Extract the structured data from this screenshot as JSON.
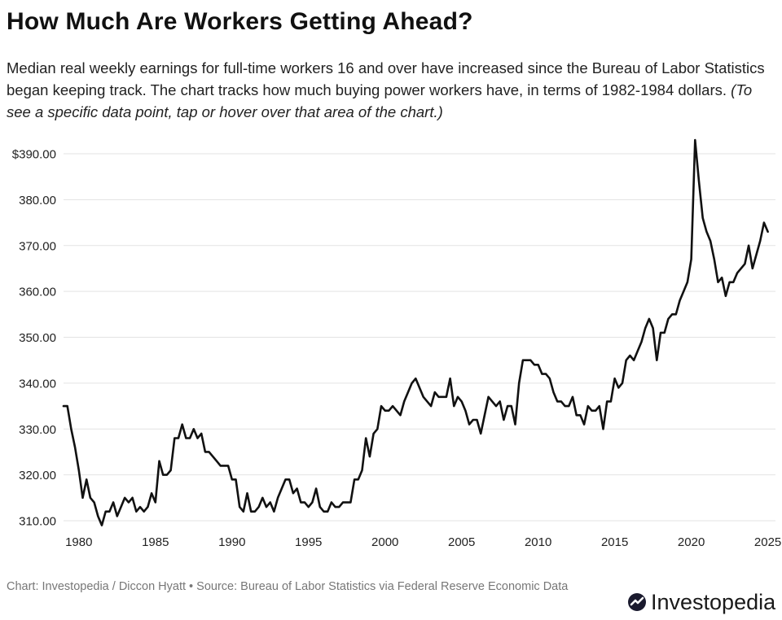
{
  "header": {
    "title": "How Much Are Workers Getting Ahead?",
    "subtitle": "Median real weekly earnings for full-time workers 16 and over have increased since the Bureau of Labor Statistics began keeping track. The chart tracks how much buying power workers have, in terms of 1982-1984 dollars.",
    "subtitle_note": "(To see a specific data point, tap or hover over that area of the chart.)"
  },
  "footer": {
    "credit": "Chart: Investopedia / Diccon Hyatt • Source: Bureau of Labor Statistics via Federal Reserve Economic Data",
    "brand": "Investopedia"
  },
  "colors": {
    "line": "#111111",
    "grid": "#e3e3e3",
    "brand_dark": "#1a1a2e"
  },
  "chart_data": {
    "type": "line",
    "title": "How Much Are Workers Getting Ahead?",
    "xlabel": "",
    "ylabel": "",
    "grid": true,
    "ylim": [
      310,
      390
    ],
    "xlim": [
      1979,
      2025.5
    ],
    "x_ticks": [
      1980,
      1985,
      1990,
      1995,
      2000,
      2005,
      2010,
      2015,
      2020,
      2025
    ],
    "x_tick_labels": [
      "1980",
      "1985",
      "1990",
      "1995",
      "2000",
      "2005",
      "2010",
      "2015",
      "2020",
      "2025"
    ],
    "y_ticks": [
      310,
      320,
      330,
      340,
      350,
      360,
      370,
      380,
      390
    ],
    "y_tick_labels": [
      "310.00",
      "320.00",
      "330.00",
      "340.00",
      "350.00",
      "360.00",
      "370.00",
      "380.00",
      "$390.00"
    ],
    "series": [
      {
        "name": "Median real weekly earnings (1982-84 dollars)",
        "x": [
          1979.0,
          1979.25,
          1979.5,
          1979.75,
          1980.0,
          1980.25,
          1980.5,
          1980.75,
          1981.0,
          1981.25,
          1981.5,
          1981.75,
          1982.0,
          1982.25,
          1982.5,
          1982.75,
          1983.0,
          1983.25,
          1983.5,
          1983.75,
          1984.0,
          1984.25,
          1984.5,
          1984.75,
          1985.0,
          1985.25,
          1985.5,
          1985.75,
          1986.0,
          1986.25,
          1986.5,
          1986.75,
          1987.0,
          1987.25,
          1987.5,
          1987.75,
          1988.0,
          1988.25,
          1988.5,
          1988.75,
          1989.0,
          1989.25,
          1989.5,
          1989.75,
          1990.0,
          1990.25,
          1990.5,
          1990.75,
          1991.0,
          1991.25,
          1991.5,
          1991.75,
          1992.0,
          1992.25,
          1992.5,
          1992.75,
          1993.0,
          1993.25,
          1993.5,
          1993.75,
          1994.0,
          1994.25,
          1994.5,
          1994.75,
          1995.0,
          1995.25,
          1995.5,
          1995.75,
          1996.0,
          1996.25,
          1996.5,
          1996.75,
          1997.0,
          1997.25,
          1997.5,
          1997.75,
          1998.0,
          1998.25,
          1998.5,
          1998.75,
          1999.0,
          1999.25,
          1999.5,
          1999.75,
          2000.0,
          2000.25,
          2000.5,
          2000.75,
          2001.0,
          2001.25,
          2001.5,
          2001.75,
          2002.0,
          2002.25,
          2002.5,
          2002.75,
          2003.0,
          2003.25,
          2003.5,
          2003.75,
          2004.0,
          2004.25,
          2004.5,
          2004.75,
          2005.0,
          2005.25,
          2005.5,
          2005.75,
          2006.0,
          2006.25,
          2006.5,
          2006.75,
          2007.0,
          2007.25,
          2007.5,
          2007.75,
          2008.0,
          2008.25,
          2008.5,
          2008.75,
          2009.0,
          2009.25,
          2009.5,
          2009.75,
          2010.0,
          2010.25,
          2010.5,
          2010.75,
          2011.0,
          2011.25,
          2011.5,
          2011.75,
          2012.0,
          2012.25,
          2012.5,
          2012.75,
          2013.0,
          2013.25,
          2013.5,
          2013.75,
          2014.0,
          2014.25,
          2014.5,
          2014.75,
          2015.0,
          2015.25,
          2015.5,
          2015.75,
          2016.0,
          2016.25,
          2016.5,
          2016.75,
          2017.0,
          2017.25,
          2017.5,
          2017.75,
          2018.0,
          2018.25,
          2018.5,
          2018.75,
          2019.0,
          2019.25,
          2019.5,
          2019.75,
          2020.0,
          2020.25,
          2020.5,
          2020.75,
          2021.0,
          2021.25,
          2021.5,
          2021.75,
          2022.0,
          2022.25,
          2022.5,
          2022.75,
          2023.0,
          2023.25,
          2023.5,
          2023.75,
          2024.0,
          2024.25,
          2024.5,
          2024.75,
          2025.0
        ],
        "values": [
          335,
          335,
          330,
          326,
          321,
          315,
          319,
          315,
          314,
          311,
          309,
          312,
          312,
          314,
          311,
          313,
          315,
          314,
          315,
          312,
          313,
          312,
          313,
          316,
          314,
          323,
          320,
          320,
          321,
          328,
          328,
          331,
          328,
          328,
          330,
          328,
          329,
          325,
          325,
          324,
          323,
          322,
          322,
          322,
          319,
          319,
          313,
          312,
          316,
          312,
          312,
          313,
          315,
          313,
          314,
          312,
          315,
          317,
          319,
          319,
          316,
          317,
          314,
          314,
          313,
          314,
          317,
          313,
          312,
          312,
          314,
          313,
          313,
          314,
          314,
          314,
          319,
          319,
          321,
          328,
          324,
          329,
          330,
          335,
          334,
          334,
          335,
          334,
          333,
          336,
          338,
          340,
          341,
          339,
          337,
          336,
          335,
          338,
          337,
          337,
          337,
          341,
          335,
          337,
          336,
          334,
          331,
          332,
          332,
          329,
          333,
          337,
          336,
          335,
          336,
          332,
          335,
          335,
          331,
          340,
          345,
          345,
          345,
          344,
          344,
          342,
          342,
          341,
          338,
          336,
          336,
          335,
          335,
          337,
          333,
          333,
          331,
          335,
          334,
          334,
          335,
          330,
          336,
          336,
          341,
          339,
          340,
          345,
          346,
          345,
          347,
          349,
          352,
          354,
          352,
          345,
          351,
          351,
          354,
          355,
          355,
          358,
          360,
          362,
          367,
          393,
          384,
          376,
          373,
          371,
          367,
          362,
          363,
          359,
          362,
          362,
          364,
          365,
          366,
          370,
          365,
          368,
          371,
          375,
          373
        ]
      }
    ]
  }
}
